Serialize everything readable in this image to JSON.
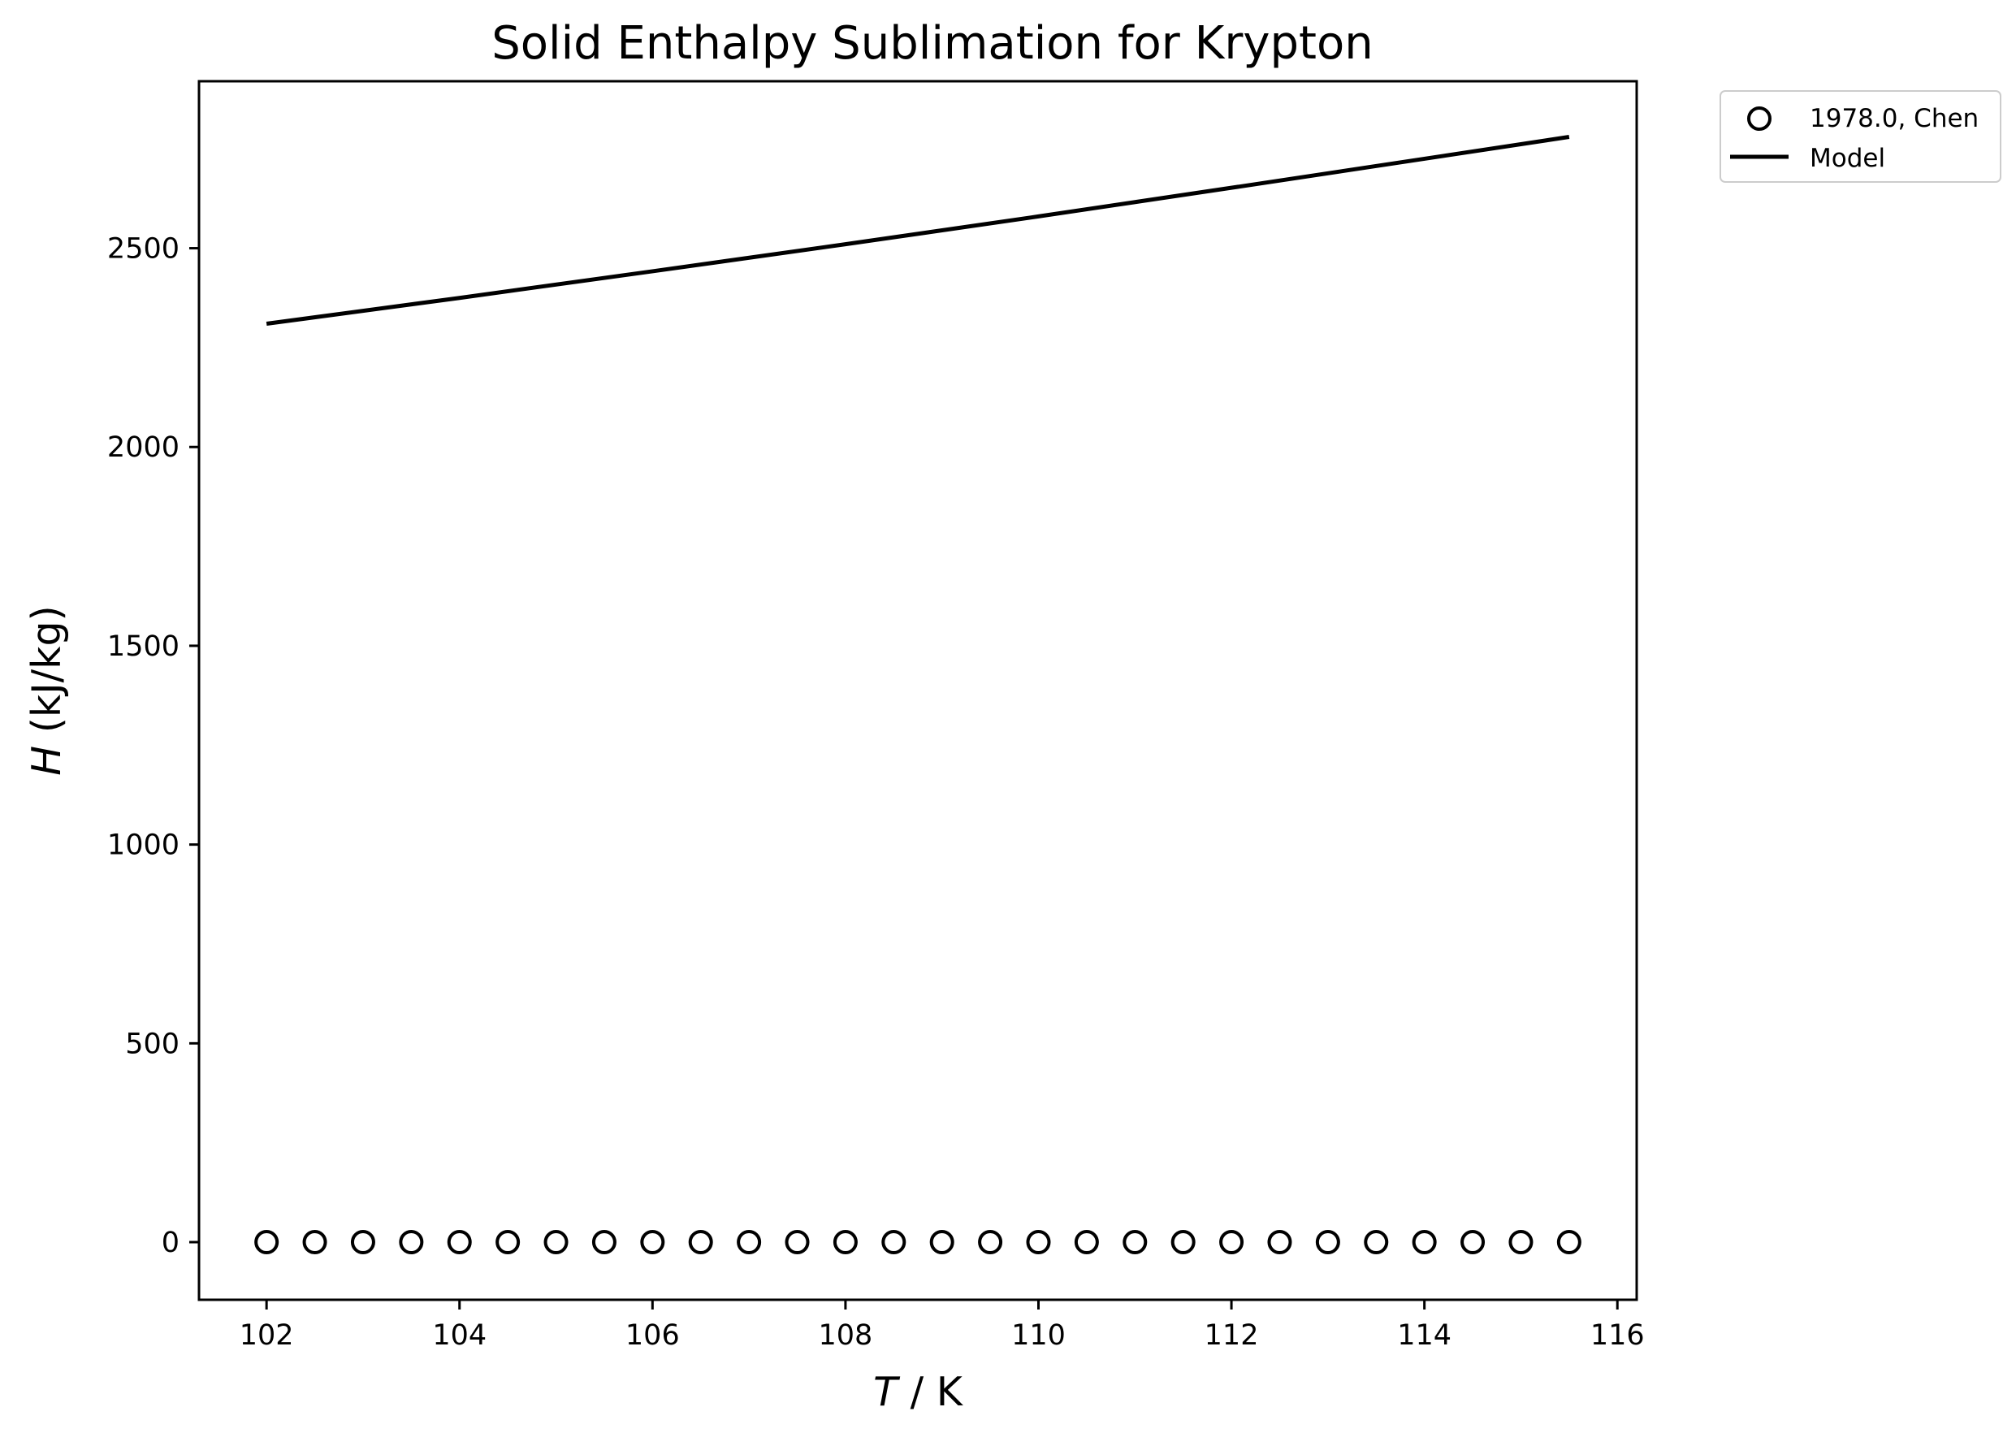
{
  "chart_data": {
    "type": "scatter",
    "title": "Solid Enthalpy Sublimation for Krypton",
    "xlabel_symbol": "T",
    "xlabel_unit": " / K",
    "ylabel_symbol": "H",
    "ylabel_unit": " (kJ/kg)",
    "xlim": [
      101.3,
      116.2
    ],
    "ylim": [
      -145,
      2920
    ],
    "xticks": [
      102,
      104,
      106,
      108,
      110,
      112,
      114,
      116
    ],
    "yticks": [
      0,
      500,
      1000,
      1500,
      2000,
      2500
    ],
    "grid": false,
    "legend_position": "outside-top-right",
    "series": [
      {
        "name": "1978.0, Chen",
        "kind": "scatter",
        "marker": "open-circle",
        "color": "#000000",
        "x": [
          102,
          102.5,
          103,
          103.5,
          104,
          104.5,
          105,
          105.5,
          106,
          106.5,
          107,
          107.5,
          108,
          108.5,
          109,
          109.5,
          110,
          110.5,
          111,
          111.5,
          112,
          112.5,
          113,
          113.5,
          114,
          114.5,
          115,
          115.5
        ],
        "y": [
          0,
          0,
          0,
          0,
          0,
          0,
          0,
          0,
          0,
          0,
          0,
          0,
          0,
          0,
          0,
          0,
          0,
          0,
          0,
          0,
          0,
          0,
          0,
          0,
          0,
          0,
          0,
          0
        ]
      },
      {
        "name": "Model",
        "kind": "line",
        "color": "#000000",
        "x": [
          102,
          104,
          106,
          108,
          110,
          112,
          114,
          115.5
        ],
        "y": [
          2310,
          2375,
          2442,
          2510,
          2580,
          2652,
          2725,
          2780
        ]
      }
    ]
  }
}
